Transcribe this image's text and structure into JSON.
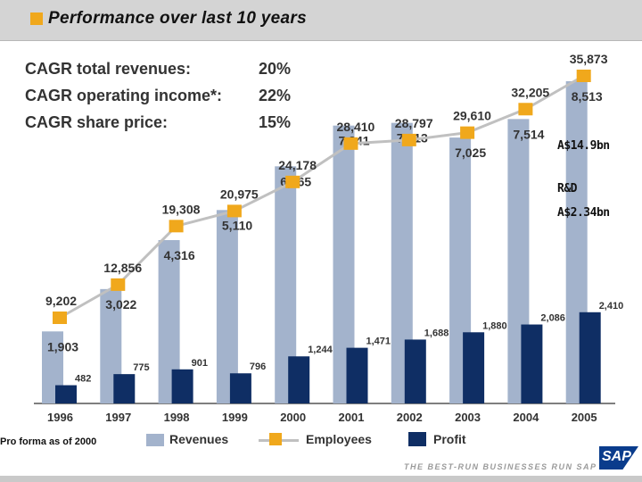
{
  "header": {
    "title": "Performance over last 10 years"
  },
  "cagr": [
    {
      "label": "CAGR total revenues:",
      "value": "20%"
    },
    {
      "label": "CAGR operating income*:",
      "value": "22%"
    },
    {
      "label": "CAGR share price:",
      "value": "15%"
    }
  ],
  "notes": {
    "revenue": "A$14.9bn",
    "rd_label": "R&D",
    "rd_value": "A$2.34bn"
  },
  "footer": {
    "pro_forma": "Pro forma as of 2000",
    "tagline": "THE BEST-RUN BUSINESSES RUN SAP",
    "logo_text": "SAP"
  },
  "colors": {
    "revenues": "#a3b3cc",
    "profit": "#0f2e64",
    "employees_line": "#c0c0c0",
    "employees_marker": "#f0a81c"
  },
  "chart_data": {
    "type": "bar",
    "title": "Performance over last 10 years",
    "categories": [
      "1996",
      "1997",
      "1998",
      "1999",
      "2000",
      "2001",
      "2002",
      "2003",
      "2004",
      "2005"
    ],
    "series": [
      {
        "name": "Revenues",
        "values": [
          1903,
          3022,
          4316,
          5110,
          6265,
          7341,
          7413,
          7025,
          7514,
          8513
        ],
        "labels": [
          "1,903",
          "3,022",
          "4,316",
          "5,110",
          "6,265",
          "7,341",
          "7,413",
          "7,025",
          "7,514",
          "8,513"
        ]
      },
      {
        "name": "Profit",
        "values": [
          482,
          775,
          901,
          796,
          1244,
          1471,
          1688,
          1880,
          2086,
          2410
        ],
        "labels": [
          "482",
          "775",
          "901",
          "796",
          "1,244",
          "1,471",
          "1,688",
          "1,880",
          "2,086",
          "2,410"
        ]
      },
      {
        "name": "Employees",
        "type": "line",
        "values": [
          9202,
          12856,
          19308,
          20975,
          24178,
          28410,
          28797,
          29610,
          32205,
          35873
        ],
        "labels": [
          "9,202",
          "12,856",
          "19,308",
          "20,975",
          "24,178",
          "28,410",
          "28,797",
          "29,610",
          "32,205",
          "35,873"
        ]
      }
    ],
    "legend": [
      "Revenues",
      "Employees",
      "Profit"
    ],
    "legend_position": "bottom",
    "grid": false
  }
}
